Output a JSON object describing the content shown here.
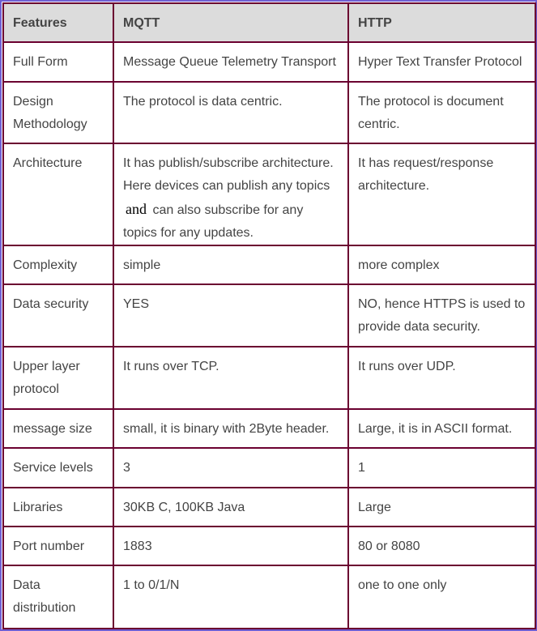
{
  "header": {
    "features": "Features",
    "mqtt": "MQTT",
    "http": "HTTP"
  },
  "rows": [
    {
      "feature": "Full Form",
      "mqtt": "Message Queue Telemetry Transport",
      "http": "Hyper Text Transfer Protocol"
    },
    {
      "feature": "Design Methodology",
      "mqtt": "The protocol is data centric.",
      "http": "The protocol is document centric."
    },
    {
      "feature": "Architecture",
      "mqtt_a": "It has publish/subscribe architecture. Here devices can publish any topics",
      "mqtt_and": "and",
      "mqtt_b": "can also subscribe for any topics for any updates.",
      "http": "It has request/response architecture."
    },
    {
      "feature": "Complexity",
      "mqtt": "simple",
      "http": "more complex"
    },
    {
      "feature": "Data security",
      "mqtt": "YES",
      "http": "NO, hence HTTPS is used to provide data security."
    },
    {
      "feature": "Upper layer protocol",
      "mqtt": "It runs over TCP.",
      "http": "It runs over UDP."
    },
    {
      "feature": "message size",
      "mqtt": "small, it is binary with 2Byte header.",
      "http": "Large, it is in ASCII format."
    },
    {
      "feature": "Service levels",
      "mqtt": "3",
      "http": "1"
    },
    {
      "feature": "Libraries",
      "mqtt": "30KB C, 100KB Java",
      "http": "Large"
    },
    {
      "feature": "Port number",
      "mqtt": "1883",
      "http": "80 or 8080"
    },
    {
      "feature": "Data distribution",
      "mqtt": "1 to 0/1/N",
      "http": "one to one only"
    }
  ],
  "colors": {
    "border": "#6b0030",
    "frame": "#6f5fd3",
    "header_bg": "#dcdcdc"
  }
}
